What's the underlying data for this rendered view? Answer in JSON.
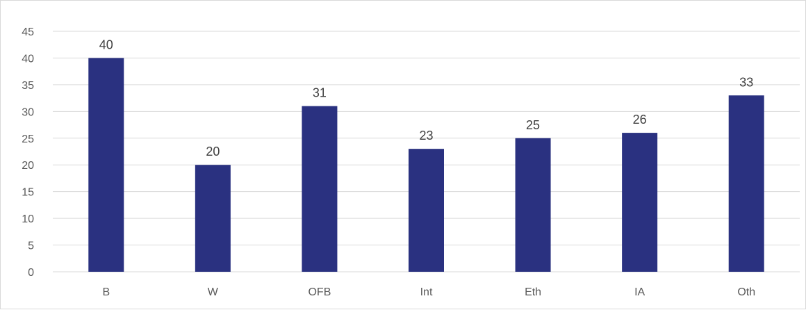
{
  "chart_data": {
    "type": "bar",
    "title": "",
    "xlabel": "",
    "ylabel": "",
    "categories": [
      "B",
      "W",
      "OFB",
      "Int",
      "Eth",
      "IA",
      "Oth"
    ],
    "values": [
      40,
      20,
      31,
      23,
      25,
      26,
      33
    ],
    "ylim": [
      0,
      45
    ],
    "yticks": [
      0,
      5,
      10,
      15,
      20,
      25,
      30,
      35,
      40,
      45
    ],
    "grid": true,
    "legend": "none",
    "data_labels": true,
    "bar_color": "#2a3180"
  }
}
